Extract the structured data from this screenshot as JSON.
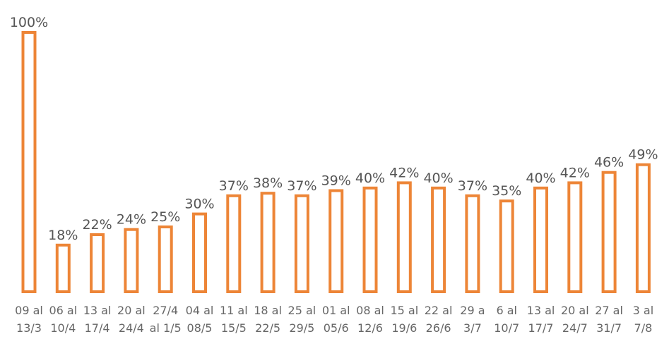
{
  "chart_data": {
    "type": "bar",
    "title": "",
    "xlabel": "",
    "ylabel": "",
    "ylim": [
      0,
      100
    ],
    "grid": false,
    "categories": [
      [
        "09 al",
        "13/3"
      ],
      [
        "06 al",
        "10/4"
      ],
      [
        "13 al",
        "17/4"
      ],
      [
        "20 al",
        "24/4"
      ],
      [
        "27/4",
        "al 1/5"
      ],
      [
        "04 al",
        "08/5"
      ],
      [
        "11 al",
        "15/5"
      ],
      [
        "18 al",
        "22/5"
      ],
      [
        "25 al",
        "29/5"
      ],
      [
        "01 al",
        "05/6"
      ],
      [
        "08 al",
        "12/6"
      ],
      [
        "15 al",
        "19/6"
      ],
      [
        "22 al",
        "26/6"
      ],
      [
        "29 a",
        "3/7"
      ],
      [
        "6 al",
        "10/7"
      ],
      [
        "13 al",
        "17/7"
      ],
      [
        "20 al",
        "24/7"
      ],
      [
        "27 al",
        "31/7"
      ],
      [
        "3 al",
        "7/8"
      ]
    ],
    "values": [
      100,
      18,
      22,
      24,
      25,
      30,
      37,
      38,
      37,
      39,
      40,
      42,
      40,
      37,
      35,
      40,
      42,
      46,
      49
    ],
    "value_labels": [
      "100%",
      "18%",
      "22%",
      "24%",
      "25%",
      "30%",
      "37%",
      "38%",
      "37%",
      "39%",
      "40%",
      "42%",
      "40%",
      "37%",
      "35%",
      "40%",
      "42%",
      "46%",
      "49%"
    ],
    "bar_color": "#ed8537"
  }
}
